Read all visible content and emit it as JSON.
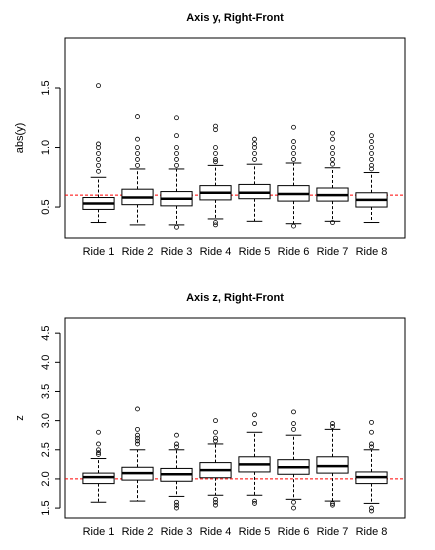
{
  "chart_data": [
    {
      "type": "box",
      "title": "Axis y, Right-Front",
      "y_label": "abs(y)",
      "color": "#000000",
      "categories": [
        "Ride 1",
        "Ride 2",
        "Ride 3",
        "Ride 4",
        "Ride 5",
        "Ride 6",
        "Ride 7",
        "Ride 8"
      ],
      "boxes": [
        {
          "whisker_low": 0.37,
          "q1": 0.48,
          "median": 0.53,
          "q3": 0.58,
          "whisker_high": 0.75,
          "outliers": [
            1.52,
            1.03,
            1.0,
            0.95,
            0.9,
            0.85,
            0.8
          ]
        },
        {
          "whisker_low": 0.35,
          "q1": 0.52,
          "median": 0.58,
          "q3": 0.65,
          "whisker_high": 0.82,
          "outliers": [
            1.26,
            1.07,
            1.0,
            0.95,
            0.9,
            0.85
          ]
        },
        {
          "whisker_low": 0.35,
          "q1": 0.51,
          "median": 0.57,
          "q3": 0.63,
          "whisker_high": 0.82,
          "outliers": [
            1.25,
            1.1,
            1.0,
            0.95,
            0.9,
            0.85,
            0.33
          ]
        },
        {
          "whisker_low": 0.4,
          "q1": 0.56,
          "median": 0.62,
          "q3": 0.68,
          "whisker_high": 0.85,
          "outliers": [
            1.18,
            1.15,
            1.0,
            0.95,
            0.9,
            0.88,
            0.37,
            0.35
          ]
        },
        {
          "whisker_low": 0.38,
          "q1": 0.57,
          "median": 0.62,
          "q3": 0.69,
          "whisker_high": 0.86,
          "outliers": [
            1.07,
            1.03,
            1.0,
            0.95,
            0.9
          ]
        },
        {
          "whisker_low": 0.36,
          "q1": 0.55,
          "median": 0.61,
          "q3": 0.68,
          "whisker_high": 0.87,
          "outliers": [
            1.17,
            1.05,
            1.0,
            0.95,
            0.9,
            0.34
          ]
        },
        {
          "whisker_low": 0.38,
          "q1": 0.55,
          "median": 0.6,
          "q3": 0.66,
          "whisker_high": 0.83,
          "outliers": [
            1.12,
            1.07,
            1.0,
            0.95,
            0.9,
            0.86,
            0.37
          ]
        },
        {
          "whisker_low": 0.37,
          "q1": 0.5,
          "median": 0.56,
          "q3": 0.62,
          "whisker_high": 0.79,
          "outliers": [
            1.1,
            1.05,
            1.0,
            0.95,
            0.9,
            0.85,
            0.82
          ]
        }
      ],
      "hline": {
        "value": 0.6,
        "color": "#ff0000",
        "dashed": true
      },
      "ylim": [
        0.24,
        1.92
      ],
      "yticks": [
        0.5,
        {
          "value": 1,
          "label": "1.0"
        },
        1.5
      ]
    },
    {
      "type": "box",
      "title": "Axis z, Right-Front",
      "y_label": "z",
      "color": "#000000",
      "categories": [
        "Ride 1",
        "Ride 2",
        "Ride 3",
        "Ride 4",
        "Ride 5",
        "Ride 6",
        "Ride 7",
        "Ride 8"
      ],
      "boxes": [
        {
          "whisker_low": 1.6,
          "q1": 1.92,
          "median": 2.03,
          "q3": 2.1,
          "whisker_high": 2.35,
          "outliers": [
            2.8,
            2.6,
            2.5,
            2.45,
            2.42
          ]
        },
        {
          "whisker_low": 1.62,
          "q1": 1.98,
          "median": 2.1,
          "q3": 2.2,
          "whisker_high": 2.5,
          "outliers": [
            3.2,
            2.85,
            2.75,
            2.7,
            2.65,
            2.6
          ]
        },
        {
          "whisker_low": 1.7,
          "q1": 1.96,
          "median": 2.08,
          "q3": 2.18,
          "whisker_high": 2.5,
          "outliers": [
            2.75,
            2.6,
            2.55,
            1.6,
            1.55,
            1.5
          ]
        },
        {
          "whisker_low": 1.72,
          "q1": 2.02,
          "median": 2.15,
          "q3": 2.28,
          "whisker_high": 2.6,
          "outliers": [
            3.0,
            2.8,
            2.7,
            2.65,
            1.65,
            1.6,
            1.55
          ]
        },
        {
          "whisker_low": 1.72,
          "q1": 2.12,
          "median": 2.25,
          "q3": 2.38,
          "whisker_high": 2.8,
          "outliers": [
            3.1,
            2.95,
            1.62,
            1.58
          ]
        },
        {
          "whisker_low": 1.65,
          "q1": 2.08,
          "median": 2.2,
          "q3": 2.33,
          "whisker_high": 2.75,
          "outliers": [
            3.15,
            2.95,
            2.85,
            1.6,
            1.5
          ]
        },
        {
          "whisker_low": 1.62,
          "q1": 2.1,
          "median": 2.22,
          "q3": 2.38,
          "whisker_high": 2.85,
          "outliers": [
            2.95,
            2.9,
            1.58,
            1.55
          ]
        },
        {
          "whisker_low": 1.58,
          "q1": 1.92,
          "median": 2.03,
          "q3": 2.12,
          "whisker_high": 2.5,
          "outliers": [
            2.97,
            2.8,
            2.6,
            2.55,
            1.5,
            1.45
          ]
        }
      ],
      "hline": {
        "value": 2,
        "color": "#ff0000",
        "dashed": true
      },
      "ylim": [
        1.33,
        4.76
      ],
      "yticks": [
        1.5,
        {
          "value": 2,
          "label": "2.0"
        },
        2.5,
        {
          "value": 3,
          "label": "3.0"
        },
        3.5,
        {
          "value": 4,
          "label": "4.0"
        },
        4.5
      ]
    }
  ]
}
